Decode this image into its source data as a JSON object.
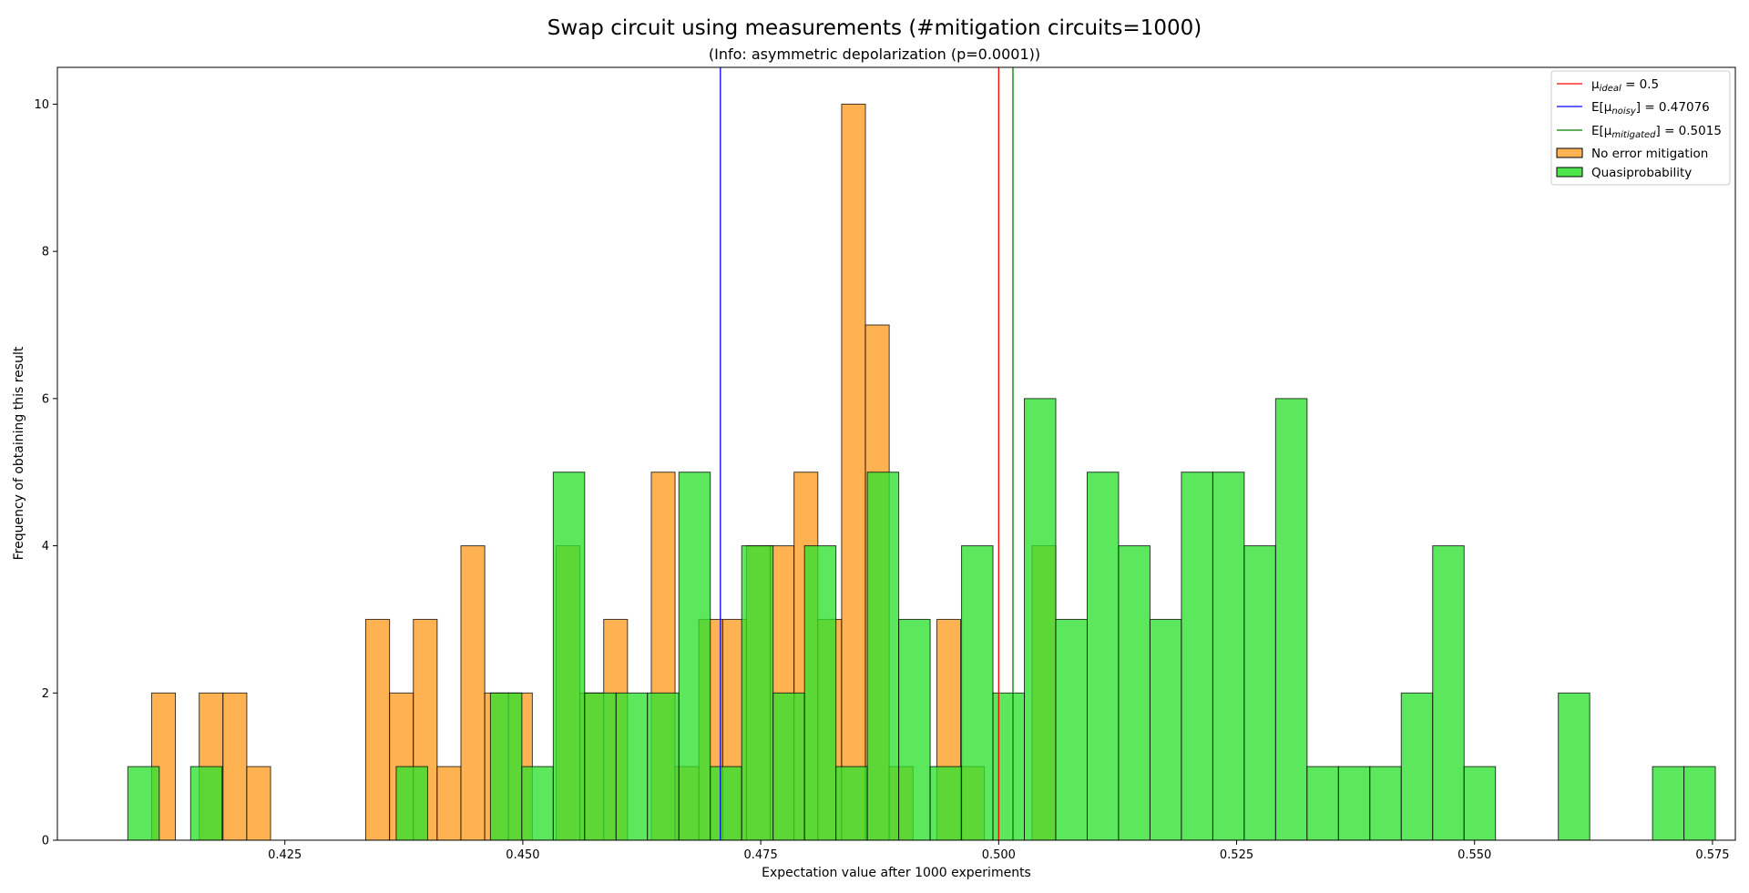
{
  "chart_data": {
    "type": "bar",
    "title": "Swap circuit using measurements (#mitigation circuits=1000)",
    "subtitle": "(Info: asymmetric depolarization (p=0.0001))",
    "xlabel": "Expectation value after 1000 experiments",
    "ylabel": "Frequency of obtaining this result",
    "xlim": [
      0.4011,
      0.5774
    ],
    "ylim": [
      0,
      10.5
    ],
    "xticks": [
      0.425,
      0.45,
      0.475,
      0.5,
      0.525,
      0.55,
      0.575
    ],
    "xtick_labels": [
      "0.425",
      "0.450",
      "0.475",
      "0.500",
      "0.525",
      "0.550",
      "0.575"
    ],
    "yticks": [
      0,
      2,
      4,
      6,
      8,
      10
    ],
    "ytick_labels": [
      "0",
      "2",
      "4",
      "6",
      "8",
      "10"
    ],
    "grid": false,
    "legend_position": "top-right",
    "vlines": [
      {
        "x": 0.5,
        "color": "#ff0000",
        "label_main": "μ",
        "label_sub": "ideal",
        "label_tail": " = 0.5"
      },
      {
        "x": 0.47076,
        "color": "#0000ff",
        "label_main": "E[μ",
        "label_sub": "noisy",
        "label_tail": "] = 0.47076"
      },
      {
        "x": 0.5015,
        "color": "#008000",
        "label_main": "E[μ",
        "label_sub": "mitigated",
        "label_tail": "] = 0.5015"
      }
    ],
    "series": [
      {
        "name": "No error mitigation",
        "color": "#ffa534",
        "bin_width": 0.0025,
        "bin_starts": [
          0.411,
          0.416,
          0.4185,
          0.421,
          0.4335,
          0.436,
          0.4385,
          0.441,
          0.4435,
          0.446,
          0.4485,
          0.4535,
          0.456,
          0.4585,
          0.4635,
          0.466,
          0.4685,
          0.471,
          0.4735,
          0.476,
          0.4785,
          0.481,
          0.4835,
          0.486,
          0.4885,
          0.4935,
          0.496,
          0.5035
        ],
        "values": [
          2,
          2,
          2,
          1,
          3,
          2,
          3,
          1,
          4,
          2,
          2,
          4,
          2,
          3,
          5,
          1,
          3,
          3,
          4,
          4,
          5,
          3,
          10,
          7,
          1,
          3,
          1,
          4
        ]
      },
      {
        "name": "Quasiprobability",
        "color": "#2ee22e",
        "bin_width": 0.0033,
        "bin_starts": [
          0.4085,
          0.4151,
          0.4367,
          0.4466,
          0.4499,
          0.4532,
          0.4565,
          0.4598,
          0.4631,
          0.4664,
          0.4697,
          0.473,
          0.4763,
          0.4796,
          0.4829,
          0.4862,
          0.4895,
          0.4928,
          0.4961,
          0.4994,
          0.5027,
          0.506,
          0.5093,
          0.5126,
          0.5159,
          0.5192,
          0.5225,
          0.5258,
          0.5291,
          0.5324,
          0.5357,
          0.539,
          0.5423,
          0.5456,
          0.5489,
          0.5588,
          0.5687,
          0.572
        ],
        "values": [
          1,
          1,
          1,
          2,
          1,
          5,
          2,
          2,
          2,
          5,
          1,
          4,
          2,
          4,
          1,
          5,
          3,
          1,
          4,
          2,
          6,
          3,
          5,
          4,
          3,
          5,
          5,
          4,
          6,
          1,
          1,
          1,
          2,
          4,
          1,
          2,
          1,
          1
        ]
      }
    ]
  }
}
